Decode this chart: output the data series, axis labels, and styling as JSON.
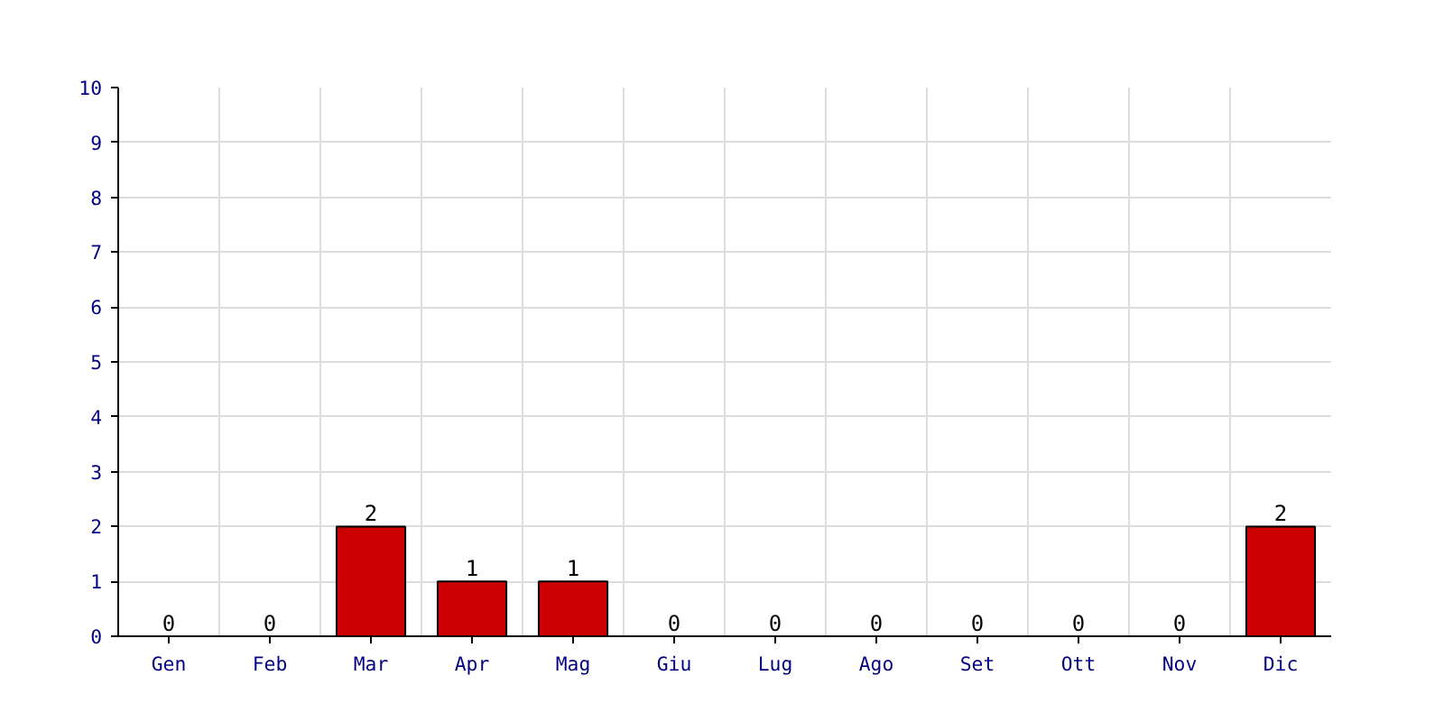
{
  "chart_data": {
    "type": "bar",
    "categories": [
      "Gen",
      "Feb",
      "Mar",
      "Apr",
      "Mag",
      "Giu",
      "Lug",
      "Ago",
      "Set",
      "Ott",
      "Nov",
      "Dic"
    ],
    "values": [
      0,
      0,
      2,
      1,
      1,
      0,
      0,
      0,
      0,
      0,
      0,
      2
    ],
    "color": "#cc0000",
    "ylim": [
      0,
      10
    ],
    "yticks": [
      0,
      1,
      2,
      3,
      4,
      5,
      6,
      7,
      8,
      9,
      10
    ],
    "grid": true,
    "data_labels": true
  }
}
